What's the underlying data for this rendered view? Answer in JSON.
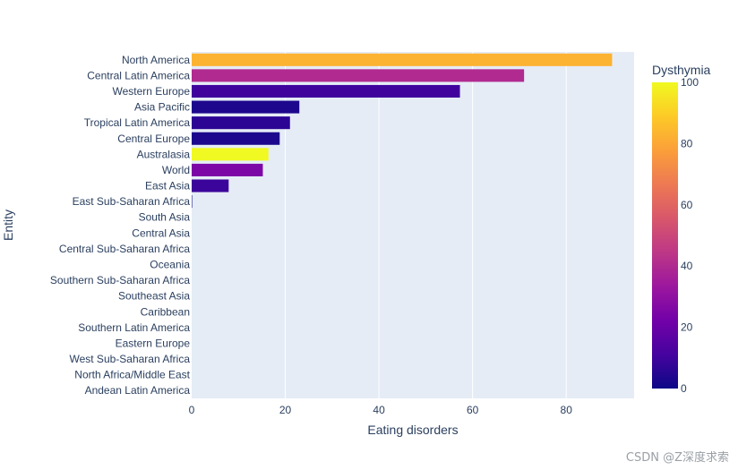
{
  "chart_data": {
    "type": "bar",
    "orientation": "horizontal",
    "xlabel": "Eating disorders",
    "ylabel": "Entity",
    "xlim": [
      0,
      94.5
    ],
    "xticks": [
      0,
      20,
      40,
      60,
      80
    ],
    "grid": true,
    "categories": [
      "North America",
      "Central Latin America",
      "Western Europe",
      "Asia Pacific",
      "Tropical Latin America",
      "Central Europe",
      "Australasia",
      "World",
      "East Asia",
      "East Sub-Saharan Africa",
      "South Asia",
      "Central Asia",
      "Central Sub-Saharan Africa",
      "Oceania",
      "Southern Sub-Saharan Africa",
      "Southeast Asia",
      "Caribbean",
      "Southern Latin America",
      "Eastern Europe",
      "West Sub-Saharan Africa",
      "North Africa/Middle East",
      "Andean Latin America"
    ],
    "values": [
      89.8,
      71.0,
      57.3,
      23.0,
      21.0,
      18.8,
      16.4,
      15.2,
      7.9,
      0.1,
      0,
      0,
      0,
      0,
      0,
      0,
      0,
      0,
      0,
      0,
      0,
      0
    ],
    "color_values": [
      83,
      40,
      10,
      3,
      6,
      3,
      100,
      25,
      9,
      0,
      0,
      0,
      0,
      0,
      0,
      0,
      0,
      0,
      0,
      0,
      0,
      0
    ],
    "colorbar": {
      "title": "Dysthymia",
      "range": [
        0,
        100
      ],
      "ticks": [
        0,
        20,
        40,
        60,
        80,
        100
      ],
      "colorscale": [
        "#0d0887",
        "#46039f",
        "#7201a8",
        "#9c179e",
        "#bd3786",
        "#d8576b",
        "#ed7953",
        "#fb9f3a",
        "#fdca26",
        "#f0f921"
      ]
    }
  },
  "watermark": "CSDN @Z深度求索"
}
